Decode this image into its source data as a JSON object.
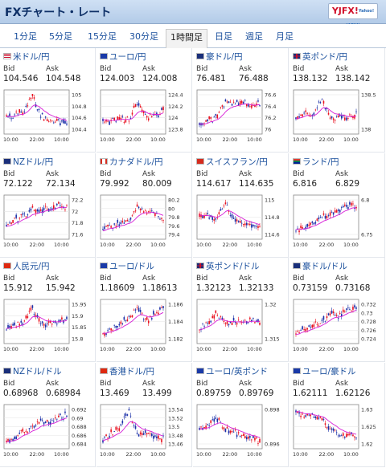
{
  "header": {
    "title": "FXチャート・レート",
    "logo_main": "YJFX!",
    "logo_sub": "Yahoo! JAPAN"
  },
  "tabs": [
    {
      "label": "1分足",
      "active": false
    },
    {
      "label": "5分足",
      "active": false
    },
    {
      "label": "15分足",
      "active": false
    },
    {
      "label": "30分足",
      "active": false
    },
    {
      "label": "1時間足",
      "active": true
    },
    {
      "label": "日足",
      "active": false
    },
    {
      "label": "週足",
      "active": false
    },
    {
      "label": "月足",
      "active": false
    }
  ],
  "labels": {
    "bid": "Bid",
    "ask": "Ask"
  },
  "colors": {
    "up": "#e8101e",
    "down": "#1a2fa8",
    "ma": "#d61bd6",
    "link": "#1a4f9c"
  },
  "pairs": [
    {
      "name": "米ドル/円",
      "flag": "us",
      "bid": "104.546",
      "ask": "104.548",
      "yticks": [
        "105",
        "104.8",
        "104.6",
        "104.4"
      ],
      "xticks": [
        "10:00",
        "22:00",
        "10:00"
      ],
      "trend": [
        0.35,
        0.45,
        0.5,
        0.9,
        0.4,
        0.3,
        0.25,
        0.2
      ]
    },
    {
      "name": "ユーロ/円",
      "flag": "eu",
      "bid": "124.003",
      "ask": "124.008",
      "yticks": [
        "124.4",
        "124.2",
        "124",
        "123.8"
      ],
      "xticks": [
        "10:00",
        "22:00",
        "10:00"
      ],
      "trend": [
        0.3,
        0.25,
        0.35,
        0.3,
        0.75,
        0.35,
        0.4,
        0.55
      ]
    },
    {
      "name": "豪ドル/円",
      "flag": "au",
      "bid": "76.481",
      "ask": "76.488",
      "yticks": [
        "76.6",
        "76.4",
        "76.2",
        "76"
      ],
      "xticks": [
        "10:00",
        "22:00",
        "10:00"
      ],
      "trend": [
        0.2,
        0.3,
        0.35,
        0.8,
        0.7,
        0.75,
        0.65,
        0.7
      ]
    },
    {
      "name": "英ポンド/円",
      "flag": "gb",
      "bid": "138.132",
      "ask": "138.142",
      "yticks": [
        "138.5",
        "138"
      ],
      "xticks": [
        "10:00",
        "22:00",
        "10:00"
      ],
      "trend": [
        0.35,
        0.45,
        0.4,
        0.85,
        0.3,
        0.4,
        0.35,
        0.45
      ]
    },
    {
      "name": "NZドル/円",
      "flag": "nz",
      "bid": "72.122",
      "ask": "72.134",
      "yticks": [
        "72.2",
        "72",
        "71.8",
        "71.6"
      ],
      "xticks": [
        "10:00",
        "22:00",
        "10:00"
      ],
      "trend": [
        0.3,
        0.45,
        0.55,
        0.7,
        0.65,
        0.75,
        0.8,
        0.75
      ]
    },
    {
      "name": "カナダドル/円",
      "flag": "ca",
      "bid": "79.992",
      "ask": "80.009",
      "yticks": [
        "80.2",
        "80",
        "79.8",
        "79.6",
        "79.4"
      ],
      "xticks": [
        "10:00",
        "22:00",
        "10:00"
      ],
      "trend": [
        0.2,
        0.3,
        0.35,
        0.4,
        0.8,
        0.65,
        0.55,
        0.5
      ]
    },
    {
      "name": "スイスフラン/円",
      "flag": "ch",
      "bid": "114.617",
      "ask": "114.635",
      "yticks": [
        "115",
        "114.8",
        "114.6"
      ],
      "xticks": [
        "10:00",
        "22:00",
        "10:00"
      ],
      "trend": [
        0.5,
        0.55,
        0.45,
        0.9,
        0.4,
        0.35,
        0.3,
        0.25
      ]
    },
    {
      "name": "ランド/円",
      "flag": "za",
      "bid": "6.816",
      "ask": "6.829",
      "yticks": [
        "6.8",
        "6.75"
      ],
      "xticks": [
        "10:00",
        "22:00",
        "10:00"
      ],
      "trend": [
        0.15,
        0.25,
        0.35,
        0.5,
        0.6,
        0.7,
        0.8,
        0.75
      ]
    },
    {
      "name": "人民元/円",
      "flag": "cn",
      "bid": "15.912",
      "ask": "15.942",
      "yticks": [
        "15.95",
        "15.9",
        "15.85",
        "15.8"
      ],
      "xticks": [
        "10:00",
        "22:00",
        "10:00"
      ],
      "trend": [
        0.3,
        0.4,
        0.5,
        0.85,
        0.4,
        0.45,
        0.5,
        0.55
      ]
    },
    {
      "name": "ユーロ/ドル",
      "flag": "eu",
      "bid": "1.18609",
      "ask": "1.18613",
      "yticks": [
        "1.186",
        "1.184",
        "1.182"
      ],
      "xticks": [
        "10:00",
        "22:00",
        "10:00"
      ],
      "trend": [
        0.2,
        0.3,
        0.45,
        0.6,
        0.85,
        0.5,
        0.7,
        0.85
      ]
    },
    {
      "name": "英ポンド/ドル",
      "flag": "gb",
      "bid": "1.32123",
      "ask": "1.32133",
      "yticks": [
        "1.32",
        "1.315"
      ],
      "xticks": [
        "10:00",
        "22:00",
        "10:00"
      ],
      "trend": [
        0.3,
        0.5,
        0.7,
        0.45,
        0.5,
        0.45,
        0.55,
        0.5
      ]
    },
    {
      "name": "豪ドル/ドル",
      "flag": "au",
      "bid": "0.73159",
      "ask": "0.73168",
      "yticks": [
        "0.732",
        "0.73",
        "0.728",
        "0.726",
        "0.724"
      ],
      "xticks": [
        "10:00",
        "22:00",
        "10:00"
      ],
      "trend": [
        0.2,
        0.3,
        0.4,
        0.5,
        0.7,
        0.65,
        0.8,
        0.85
      ]
    },
    {
      "name": "NZドル/ドル",
      "flag": "nz",
      "bid": "0.68968",
      "ask": "0.68984",
      "yticks": [
        "0.692",
        "0.69",
        "0.688",
        "0.686",
        "0.684"
      ],
      "xticks": [
        "10:00",
        "22:00",
        "10:00"
      ],
      "trend": [
        0.15,
        0.25,
        0.4,
        0.5,
        0.65,
        0.55,
        0.75,
        0.8
      ]
    },
    {
      "name": "香港ドル/円",
      "flag": "hk",
      "bid": "13.469",
      "ask": "13.499",
      "yticks": [
        "13.54",
        "13.52",
        "13.5",
        "13.48",
        "13.46"
      ],
      "xticks": [
        "10:00",
        "22:00",
        "10:00"
      ],
      "trend": [
        0.2,
        0.35,
        0.5,
        0.9,
        0.3,
        0.35,
        0.25,
        0.2
      ]
    },
    {
      "name": "ユーロ/英ポンド",
      "flag": "eu",
      "bid": "0.89759",
      "ask": "0.89769",
      "yticks": [
        "0.898",
        "0.896"
      ],
      "xticks": [
        "10:00",
        "22:00",
        "10:00"
      ],
      "trend": [
        0.4,
        0.55,
        0.7,
        0.45,
        0.35,
        0.3,
        0.2,
        0.15
      ]
    },
    {
      "name": "ユーロ/豪ドル",
      "flag": "eu",
      "bid": "1.62111",
      "ask": "1.62126",
      "yticks": [
        "1.63",
        "1.625",
        "1.62"
      ],
      "xticks": [
        "10:00",
        "22:00",
        "10:00"
      ],
      "trend": [
        0.85,
        0.8,
        0.75,
        0.7,
        0.45,
        0.3,
        0.25,
        0.3
      ]
    }
  ]
}
